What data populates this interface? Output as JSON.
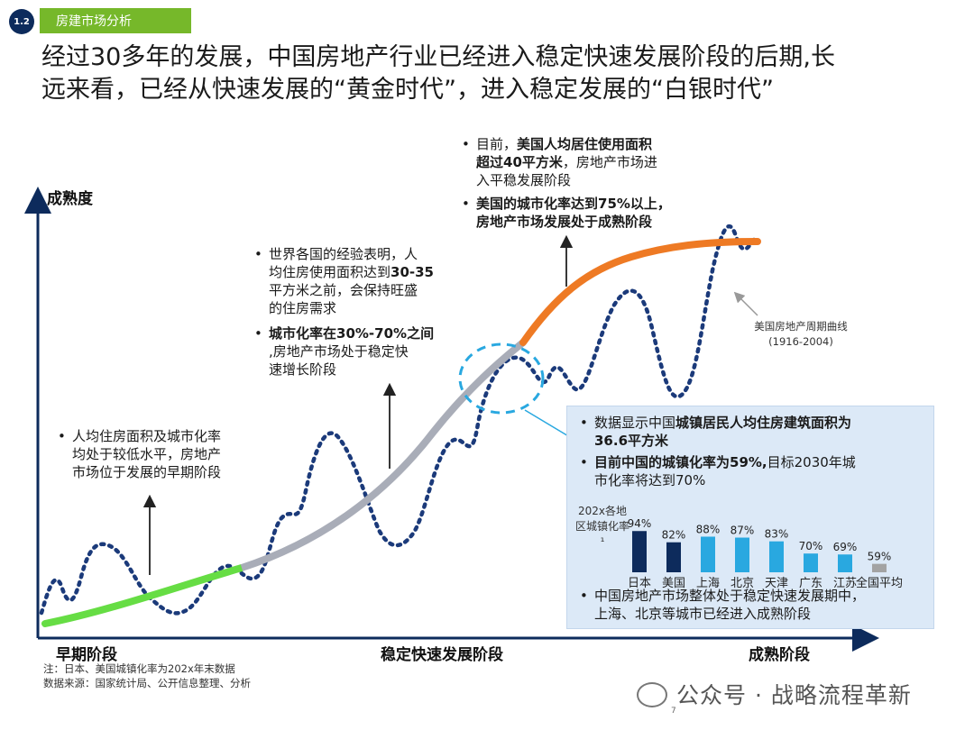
{
  "section": {
    "number": "1.2",
    "title": "房建市场分析"
  },
  "headline": {
    "line1": "经过30多年的发展，中国房地产行业已经进入稳定快速发展阶段的后期,长",
    "line2": "远来看，已经从快速发展的“黄金时代”，进入稳定发展的“白银时代”"
  },
  "axis": {
    "y_label": "成熟度",
    "stage_early": "早期阶段",
    "stage_growth": "稳定快速发展阶段",
    "stage_mature": "成熟阶段"
  },
  "annotations": {
    "early": {
      "bullet": "•",
      "l1": "人均住房面积及城市化率",
      "l2": "均处于较低水平，房地产",
      "l3": "市场位于发展的早期阶段"
    },
    "growth": {
      "b1": {
        "bullet": "•",
        "l1": "世界各国的经验表明，人",
        "l2a": "均住房使用面积达到",
        "l2b": "30-35",
        "l3": "平方米之前，会保持旺盛",
        "l4": "的住房需求"
      },
      "b2": {
        "bullet": "•",
        "l1a": "城市化率在",
        "l1b": "30%-70%",
        "l1c": "之间",
        "l2": ",房地产市场处于稳定快",
        "l3": "速增长阶段"
      }
    },
    "mature": {
      "b1": {
        "bullet": "•",
        "l1a": "目前，",
        "l1b": "美国人均居住使用面积",
        "l2a": "超过",
        "l2b": "40",
        "l2c": "平方米",
        "l2d": "，房地产市场进",
        "l3": "入平稳发展阶段"
      },
      "b2": {
        "bullet": "•",
        "l1": "美国的城市化率达到75%以上，",
        "l2": "房地产市场发展处于成熟阶段"
      }
    },
    "us_curve": {
      "l1": "美国房地产周期曲线",
      "l2": "(1916-2004)"
    }
  },
  "info_box": {
    "b1": {
      "bullet": "•",
      "l1a": "数据显示中国",
      "l1b": "城镇居民人均住房建筑面积为",
      "l2": "36.6平方米"
    },
    "b2": {
      "bullet": "•",
      "l1a": "目前中国的城镇化率为59%,",
      "l1b": "目标2030年城",
      "l2": "市化率将达到70%"
    },
    "b3": {
      "bullet": "•",
      "l1": "中国房地产市场整体处于稳定快速发展期中，",
      "l2": "上海、北京等城市已经进入成熟阶段"
    }
  },
  "chart_data": [
    {
      "type": "bar",
      "ylabel": "202x各地区城镇化率¹",
      "categories": [
        "日本",
        "美国",
        "上海",
        "北京",
        "天津",
        "广东",
        "江苏",
        "全国平均"
      ],
      "values": [
        94,
        82,
        88,
        87,
        83,
        70,
        69,
        59
      ],
      "value_labels": [
        "94%",
        "82%",
        "88%",
        "87%",
        "83%",
        "70%",
        "69%",
        "59%"
      ],
      "ylim": [
        0,
        100
      ],
      "bar_colors": [
        "#0d2b5c",
        "#0d2b5c",
        "#29a8e0",
        "#29a8e0",
        "#29a8e0",
        "#29a8e0",
        "#29a8e0",
        "#a3a3a3"
      ]
    },
    {
      "type": "line",
      "ylabel": "成熟度",
      "categories": [
        "早期阶段",
        "稳定快速发展阶段",
        "成熟阶段"
      ],
      "series": [
        {
          "color": "#66dd44",
          "segment": "早期阶段"
        },
        {
          "color": "#a9adb8",
          "segment": "稳定快速发展阶段"
        },
        {
          "color": "#ee7a24",
          "segment": "成熟阶段"
        }
      ],
      "grid": false
    }
  ],
  "notes": {
    "n1": "注：日本、美国城镇化率为202x年末数据",
    "n2": "数据来源：国家统计局、公开信息整理、分析"
  },
  "watermark": {
    "text": "公众号 · 战略流程革新"
  },
  "page": {
    "number": "7"
  },
  "colors": {
    "navy": "#0d2b5c",
    "green": "#76b82a",
    "sky": "#29a8e0",
    "orange": "#ee7a24",
    "grey": "#a9adb8"
  }
}
